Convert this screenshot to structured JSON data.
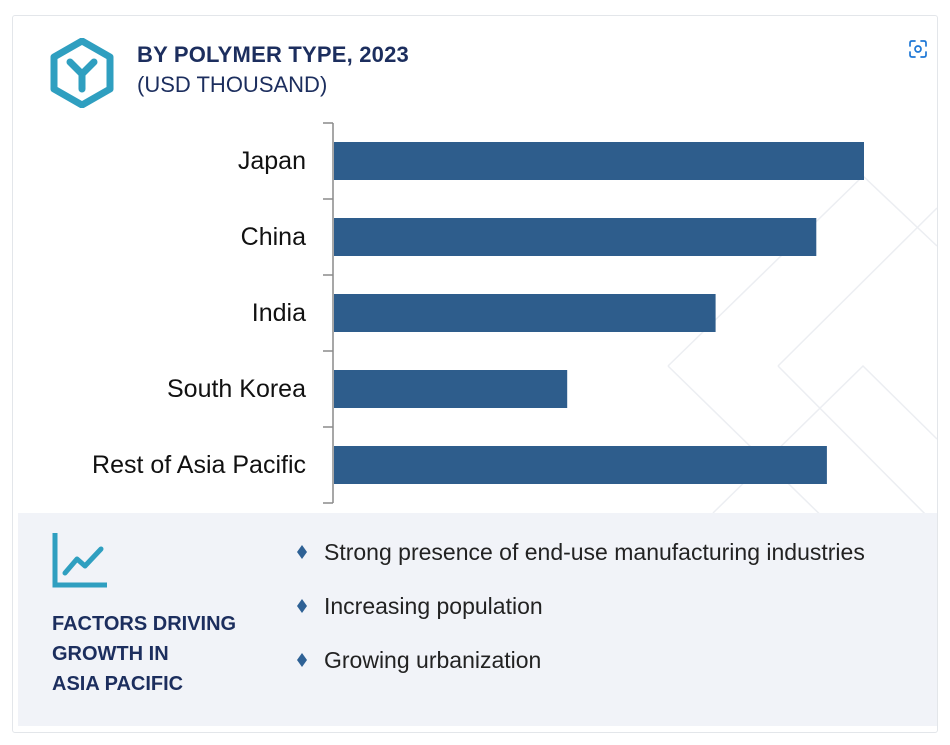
{
  "header": {
    "title": "BY POLYMER TYPE, 2023",
    "subtitle": "(USD THOUSAND)",
    "logo_icon": "hexagon-y-icon"
  },
  "toolbar": {
    "expand_icon": "expand-image-icon"
  },
  "chart_data": {
    "type": "bar",
    "orientation": "horizontal",
    "categories": [
      "Japan",
      "China",
      "India",
      "South Korea",
      "Rest of Asia Pacific"
    ],
    "values": [
      100,
      91,
      72,
      44,
      93
    ],
    "title": "BY POLYMER TYPE, 2023",
    "subtitle": "(USD THOUSAND)",
    "xlabel": "",
    "ylabel": "",
    "xlim": [
      0,
      100
    ],
    "grid": false,
    "legend": "none",
    "bar_color": "#2e5d8c"
  },
  "factors": {
    "title": "FACTORS DRIVING\nGROWTH IN\nASIA PACIFIC",
    "icon": "trend-chart-icon",
    "items": [
      "Strong presence of end-use manufacturing industries",
      "Increasing population",
      "Growing urbanization"
    ]
  },
  "colors": {
    "accent": "#2f9fc0",
    "navy_text": "#1c2e5e",
    "bar": "#2e5d8c",
    "panel_bg": "#f1f3f8"
  }
}
